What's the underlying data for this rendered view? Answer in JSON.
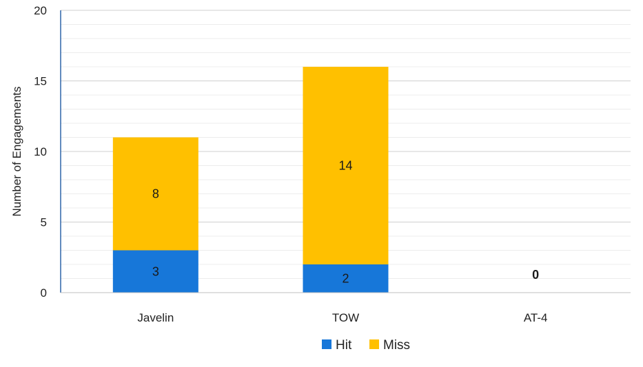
{
  "chart_data": {
    "type": "bar",
    "stacked": true,
    "title": "",
    "xlabel": "",
    "ylabel": "Number of Engagements",
    "ylim": [
      0,
      20
    ],
    "yticks": [
      0,
      5,
      10,
      15,
      20
    ],
    "minor_gridlines": true,
    "grid": true,
    "legend_position": "bottom",
    "categories": [
      "Javelin",
      "TOW",
      "AT-4"
    ],
    "series": [
      {
        "name": "Hit",
        "color": "#1777D9",
        "values": [
          3,
          2,
          0
        ]
      },
      {
        "name": "Miss",
        "color": "#FFC000",
        "values": [
          8,
          14,
          0
        ]
      }
    ],
    "data_labels": {
      "Hit": [
        "3",
        "2",
        ""
      ],
      "Miss": [
        "8",
        "14",
        ""
      ]
    },
    "total_labels": [
      "",
      "",
      "0"
    ]
  }
}
